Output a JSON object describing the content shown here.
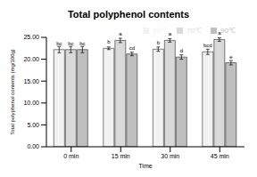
{
  "chart_data": {
    "type": "bar",
    "title": "Total polyphenol contents",
    "x_label": "Time",
    "y_label": "Total polyphenol contents (mg/100g)",
    "categories": [
      "0 min",
      "15 min",
      "30 min",
      "45 min"
    ],
    "series": [
      {
        "name": "50℃",
        "color": "#f2f2f2",
        "values": [
          22.2,
          22.5,
          22.3,
          21.7
        ],
        "errors": [
          0.7,
          0.3,
          0.5,
          0.6
        ],
        "annotations": [
          "bc",
          "b",
          "b",
          "bcd"
        ]
      },
      {
        "name": "70℃",
        "color": "#d9d9d9",
        "values": [
          22.2,
          24.3,
          24.3,
          24.5
        ],
        "errors": [
          0.7,
          0.5,
          0.4,
          0.4
        ],
        "annotations": [
          "bc",
          "a",
          "a",
          "a"
        ]
      },
      {
        "name": "90℃",
        "color": "#bfbfbf",
        "values": [
          22.2,
          21.2,
          20.5,
          19.2
        ],
        "errors": [
          0.7,
          0.4,
          0.5,
          0.5
        ],
        "annotations": [
          "bc",
          "cd",
          "d",
          "e"
        ]
      }
    ],
    "ylim": [
      0,
      25
    ],
    "yticks": [
      {
        "value": 0,
        "label": "0.00"
      },
      {
        "value": 5,
        "label": "5.00"
      },
      {
        "value": 10,
        "label": "10.00"
      },
      {
        "value": 15,
        "label": "15.00"
      },
      {
        "value": 20,
        "label": "20.00"
      },
      {
        "value": 25,
        "label": "25.00"
      }
    ],
    "grid": false,
    "legend": "top-right"
  }
}
